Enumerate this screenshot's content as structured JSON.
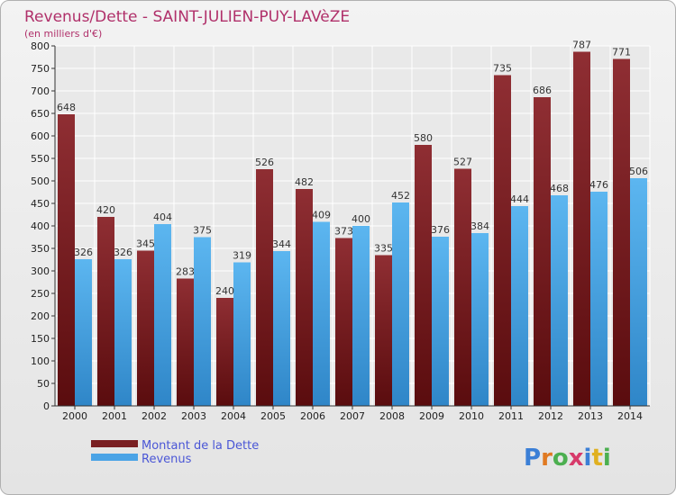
{
  "chart_data": {
    "type": "bar",
    "title": "Revenus/Dette - SAINT-JULIEN-PUY-LAVèZE",
    "subtitle": "(en milliers d'€)",
    "categories": [
      "2000",
      "2001",
      "2002",
      "2003",
      "2004",
      "2005",
      "2006",
      "2007",
      "2008",
      "2009",
      "2010",
      "2011",
      "2012",
      "2013",
      "2014"
    ],
    "series": [
      {
        "name": "Montant de la Dette",
        "color": "#7a1f22",
        "values": [
          648,
          420,
          345,
          283,
          240,
          526,
          482,
          373,
          335,
          580,
          527,
          735,
          686,
          787,
          771
        ]
      },
      {
        "name": "Revenus",
        "color": "#4aa3e6",
        "values": [
          326,
          326,
          404,
          375,
          319,
          344,
          409,
          400,
          452,
          376,
          384,
          444,
          468,
          476,
          506
        ]
      }
    ],
    "ylim": [
      0,
      800
    ],
    "yticks": [
      0,
      50,
      100,
      150,
      200,
      250,
      300,
      350,
      400,
      450,
      500,
      550,
      600,
      650,
      700,
      750,
      800
    ],
    "grid": true,
    "legend": "bottom-left"
  },
  "brand": {
    "logo_text": "Proxiti"
  }
}
